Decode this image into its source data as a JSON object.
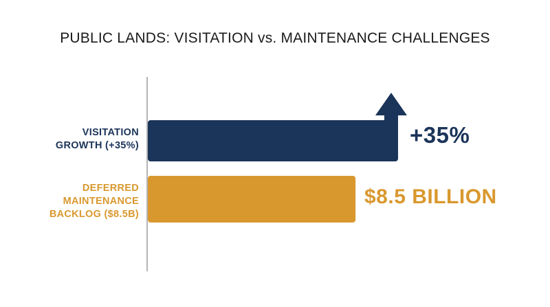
{
  "chart_data": {
    "type": "bar",
    "orientation": "horizontal",
    "title": "PUBLIC LANDS: VISITATION vs. MAINTENANCE CHALLENGES",
    "categories": [
      "VISITATION GROWTH (+35%)",
      "DEFERRED MAINTENANCE BACKLOG ($8.5B)"
    ],
    "category_lines": [
      [
        "VISITATION",
        "GROWTH (+35%)"
      ],
      [
        "DEFERRED",
        "MAINTENANCE",
        "BACKLOG ($8.5B)"
      ]
    ],
    "value_labels": [
      "+35%",
      "$8.5 BILLION"
    ],
    "values": [
      35,
      8.5
    ],
    "units": [
      "percent",
      "billion dollars"
    ],
    "relative_bar_length": [
      1.0,
      0.83
    ],
    "grid": false,
    "legend": "none",
    "colors": {
      "visitation": "#1b3459",
      "backlog": "#d9982e",
      "axis": "#b5b5b5",
      "title": "#1a1a1a"
    },
    "icons": {
      "visitation_bar_end": "up-arrow-icon"
    }
  }
}
